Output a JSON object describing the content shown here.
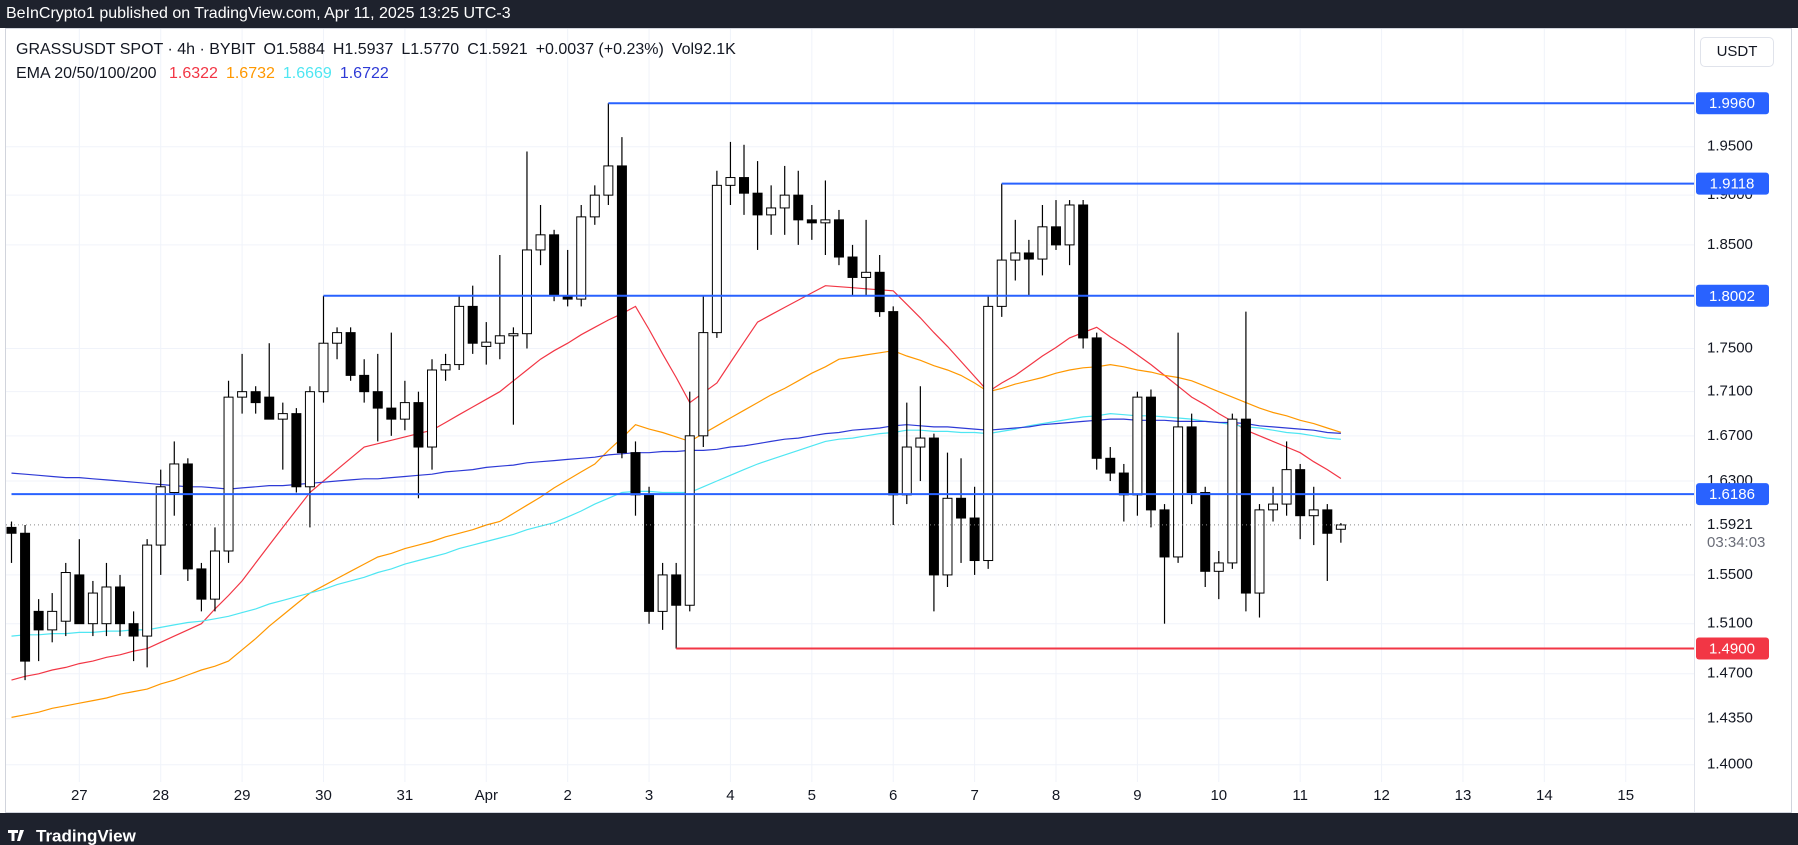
{
  "top_bar": "BeInCrypto1 published on TradingView.com, Apr 11, 2025 13:25 UTC-3",
  "footer": "TradingView",
  "chart_data": {
    "type": "candlestick",
    "symbol": "GRASSUSDT SPOT · 4h · BYBIT",
    "ohlc_header": [
      "O1.5884",
      "H1.5937",
      "L1.5770",
      "C1.5921",
      "+0.0037 (+0.23%)",
      "Vol92.1K"
    ],
    "currency": "USDT",
    "ema_title": "EMA 20/50/100/200",
    "up_color": "#ffffff",
    "down_color": "#000000",
    "open": [
      1.59,
      1.585,
      1.52,
      1.505,
      1.512,
      1.55,
      1.51,
      1.51,
      1.54,
      1.51,
      1.5,
      1.575,
      1.62,
      1.645,
      1.555,
      1.53,
      1.57,
      1.705,
      1.71,
      1.705,
      1.685,
      1.69,
      1.625,
      1.71,
      1.755,
      1.765,
      1.725,
      1.71,
      1.695,
      1.685,
      1.7,
      1.66,
      1.73,
      1.735,
      1.79,
      1.752,
      1.755,
      1.762,
      1.764,
      1.845,
      1.86,
      1.8,
      1.797,
      1.878,
      1.9,
      1.93,
      1.655,
      1.618,
      1.52,
      1.55,
      1.525,
      1.67,
      1.765,
      1.91,
      1.918,
      1.902,
      1.88,
      1.887,
      1.9,
      1.875,
      1.872,
      1.875,
      1.838,
      1.818,
      1.823,
      1.785,
      1.618,
      1.66,
      1.668,
      1.55,
      1.615,
      1.598,
      1.562,
      1.79,
      1.835,
      1.842,
      1.836,
      1.868,
      1.85,
      1.89,
      1.76,
      1.65,
      1.637,
      1.618,
      1.705,
      1.605,
      1.565,
      1.678,
      1.62,
      1.553,
      1.56,
      1.685,
      1.535,
      1.605,
      1.61,
      1.64,
      1.6,
      1.605,
      1.5884
    ],
    "high": [
      1.595,
      1.592,
      1.53,
      1.535,
      1.56,
      1.58,
      1.545,
      1.56,
      1.55,
      1.52,
      1.58,
      1.64,
      1.665,
      1.65,
      1.56,
      1.59,
      1.72,
      1.745,
      1.715,
      1.755,
      1.7,
      1.695,
      1.715,
      1.8002,
      1.77,
      1.77,
      1.74,
      1.745,
      1.765,
      1.72,
      1.71,
      1.74,
      1.745,
      1.8,
      1.81,
      1.775,
      1.84,
      1.77,
      1.945,
      1.89,
      1.865,
      1.845,
      1.89,
      1.91,
      1.996,
      1.96,
      1.665,
      1.625,
      1.56,
      1.56,
      1.71,
      1.8,
      1.925,
      1.955,
      1.952,
      1.935,
      1.91,
      1.93,
      1.925,
      1.89,
      1.915,
      1.885,
      1.85,
      1.875,
      1.84,
      1.79,
      1.7,
      1.715,
      1.672,
      1.655,
      1.65,
      1.625,
      1.8,
      1.9118,
      1.875,
      1.855,
      1.89,
      1.895,
      1.895,
      1.895,
      1.765,
      1.66,
      1.645,
      1.71,
      1.712,
      1.61,
      1.765,
      1.69,
      1.625,
      1.57,
      1.69,
      1.785,
      1.61,
      1.625,
      1.665,
      1.645,
      1.625,
      1.61,
      1.5937
    ],
    "low": [
      1.56,
      1.465,
      1.48,
      1.495,
      1.5,
      1.51,
      1.5,
      1.5,
      1.5,
      1.48,
      1.475,
      1.55,
      1.6,
      1.545,
      1.52,
      1.52,
      1.56,
      1.69,
      1.69,
      1.685,
      1.64,
      1.62,
      1.59,
      1.7,
      1.74,
      1.72,
      1.7,
      1.665,
      1.67,
      1.675,
      1.615,
      1.64,
      1.72,
      1.73,
      1.745,
      1.735,
      1.74,
      1.68,
      1.75,
      1.83,
      1.795,
      1.79,
      1.79,
      1.87,
      1.89,
      1.65,
      1.6,
      1.51,
      1.505,
      1.49,
      1.52,
      1.66,
      1.76,
      1.89,
      1.88,
      1.845,
      1.86,
      1.86,
      1.85,
      1.855,
      1.84,
      1.83,
      1.8,
      1.8,
      1.78,
      1.592,
      1.61,
      1.63,
      1.52,
      1.54,
      1.56,
      1.55,
      1.555,
      1.78,
      1.815,
      1.8,
      1.82,
      1.845,
      1.83,
      1.75,
      1.64,
      1.63,
      1.595,
      1.6,
      1.59,
      1.51,
      1.56,
      1.61,
      1.54,
      1.53,
      1.555,
      1.52,
      1.515,
      1.595,
      1.6,
      1.58,
      1.575,
      1.545,
      1.577
    ],
    "close": [
      1.585,
      1.48,
      1.505,
      1.52,
      1.552,
      1.51,
      1.535,
      1.54,
      1.51,
      1.5,
      1.575,
      1.625,
      1.645,
      1.555,
      1.53,
      1.57,
      1.705,
      1.71,
      1.7,
      1.685,
      1.69,
      1.625,
      1.71,
      1.755,
      1.765,
      1.725,
      1.71,
      1.695,
      1.685,
      1.7,
      1.66,
      1.73,
      1.735,
      1.79,
      1.755,
      1.756,
      1.762,
      1.764,
      1.845,
      1.86,
      1.8,
      1.797,
      1.878,
      1.9,
      1.93,
      1.655,
      1.618,
      1.52,
      1.55,
      1.525,
      1.67,
      1.765,
      1.91,
      1.918,
      1.902,
      1.88,
      1.887,
      1.9,
      1.875,
      1.872,
      1.875,
      1.838,
      1.818,
      1.823,
      1.785,
      1.618,
      1.66,
      1.668,
      1.55,
      1.615,
      1.598,
      1.562,
      1.79,
      1.835,
      1.842,
      1.836,
      1.868,
      1.85,
      1.89,
      1.76,
      1.65,
      1.637,
      1.618,
      1.705,
      1.605,
      1.565,
      1.678,
      1.62,
      1.553,
      1.56,
      1.685,
      1.535,
      1.605,
      1.61,
      1.64,
      1.6,
      1.605,
      1.585,
      1.5921
    ],
    "overlays": [
      {
        "color": "#f23645",
        "legend_value": "1.6322",
        "values": [
          1.465,
          1.468,
          1.47,
          1.473,
          1.475,
          1.478,
          1.48,
          1.483,
          1.485,
          1.488,
          1.49,
          1.495,
          1.5,
          1.505,
          1.51,
          1.522,
          1.533,
          1.545,
          1.56,
          1.575,
          1.59,
          1.605,
          1.62,
          1.63,
          1.64,
          1.65,
          1.66,
          1.663,
          1.666,
          1.669,
          1.672,
          1.675,
          1.682,
          1.689,
          1.696,
          1.703,
          1.71,
          1.72,
          1.73,
          1.74,
          1.748,
          1.755,
          1.763,
          1.77,
          1.777,
          1.783,
          1.79,
          1.768,
          1.745,
          1.723,
          1.7,
          1.709,
          1.718,
          1.737,
          1.756,
          1.775,
          1.782,
          1.789,
          1.796,
          1.803,
          1.81,
          1.809,
          1.808,
          1.807,
          1.806,
          1.805,
          1.792,
          1.779,
          1.765,
          1.752,
          1.738,
          1.724,
          1.71,
          1.718,
          1.725,
          1.734,
          1.743,
          1.751,
          1.76,
          1.765,
          1.77,
          1.761,
          1.753,
          1.744,
          1.735,
          1.725,
          1.715,
          1.705,
          1.698,
          1.69,
          1.683,
          1.675,
          1.67,
          1.665,
          1.66,
          1.655,
          1.647,
          1.64,
          1.6322
        ]
      },
      {
        "color": "#ff9800",
        "legend_value": "1.6732",
        "values": [
          1.436,
          1.438,
          1.44,
          1.443,
          1.445,
          1.447,
          1.449,
          1.451,
          1.454,
          1.456,
          1.458,
          1.462,
          1.465,
          1.469,
          1.473,
          1.476,
          1.48,
          1.489,
          1.498,
          1.508,
          1.517,
          1.526,
          1.535,
          1.541,
          1.547,
          1.553,
          1.559,
          1.565,
          1.568,
          1.572,
          1.575,
          1.578,
          1.582,
          1.585,
          1.588,
          1.592,
          1.595,
          1.602,
          1.609,
          1.616,
          1.624,
          1.631,
          1.638,
          1.645,
          1.657,
          1.668,
          1.68,
          1.676,
          1.673,
          1.669,
          1.665,
          1.672,
          1.679,
          1.686,
          1.693,
          1.7,
          1.707,
          1.713,
          1.72,
          1.727,
          1.733,
          1.74,
          1.742,
          1.744,
          1.746,
          1.748,
          1.743,
          1.739,
          1.734,
          1.73,
          1.725,
          1.718,
          1.71,
          1.713,
          1.717,
          1.72,
          1.723,
          1.727,
          1.73,
          1.732,
          1.733,
          1.735,
          1.733,
          1.73,
          1.728,
          1.725,
          1.723,
          1.72,
          1.715,
          1.71,
          1.705,
          1.7,
          1.695,
          1.691,
          1.688,
          1.684,
          1.681,
          1.677,
          1.6732
        ]
      },
      {
        "color": "#4fe6f2",
        "legend_value": "1.6669",
        "values": [
          1.5,
          1.501,
          1.501,
          1.502,
          1.502,
          1.503,
          1.503,
          1.504,
          1.504,
          1.505,
          1.505,
          1.507,
          1.509,
          1.511,
          1.512,
          1.514,
          1.516,
          1.519,
          1.522,
          1.526,
          1.529,
          1.532,
          1.535,
          1.538,
          1.542,
          1.545,
          1.548,
          1.552,
          1.555,
          1.559,
          1.562,
          1.565,
          1.568,
          1.572,
          1.575,
          1.578,
          1.581,
          1.584,
          1.588,
          1.591,
          1.594,
          1.599,
          1.604,
          1.61,
          1.615,
          1.62,
          1.621,
          1.621,
          1.62,
          1.62,
          1.62,
          1.625,
          1.63,
          1.635,
          1.64,
          1.645,
          1.649,
          1.653,
          1.657,
          1.661,
          1.665,
          1.667,
          1.668,
          1.67,
          1.672,
          1.673,
          1.675,
          1.675,
          1.674,
          1.674,
          1.673,
          1.673,
          1.672,
          1.674,
          1.676,
          1.679,
          1.681,
          1.683,
          1.685,
          1.687,
          1.688,
          1.69,
          1.689,
          1.688,
          1.688,
          1.687,
          1.686,
          1.685,
          1.683,
          1.682,
          1.68,
          1.678,
          1.677,
          1.675,
          1.673,
          1.672,
          1.67,
          1.668,
          1.6669
        ]
      },
      {
        "color": "#2e3ad6",
        "legend_value": "1.6722",
        "values": [
          1.637,
          1.636,
          1.635,
          1.634,
          1.633,
          1.633,
          1.632,
          1.631,
          1.63,
          1.629,
          1.628,
          1.627,
          1.626,
          1.625,
          1.625,
          1.624,
          1.623,
          1.624,
          1.625,
          1.626,
          1.626,
          1.627,
          1.628,
          1.629,
          1.63,
          1.631,
          1.632,
          1.632,
          1.633,
          1.634,
          1.635,
          1.636,
          1.638,
          1.639,
          1.64,
          1.642,
          1.643,
          1.644,
          1.646,
          1.647,
          1.648,
          1.649,
          1.65,
          1.651,
          1.653,
          1.654,
          1.655,
          1.655,
          1.656,
          1.656,
          1.657,
          1.657,
          1.658,
          1.66,
          1.661,
          1.663,
          1.665,
          1.667,
          1.668,
          1.67,
          1.672,
          1.673,
          1.675,
          1.676,
          1.677,
          1.679,
          1.68,
          1.679,
          1.678,
          1.678,
          1.677,
          1.676,
          1.675,
          1.676,
          1.677,
          1.678,
          1.68,
          1.681,
          1.682,
          1.683,
          1.684,
          1.685,
          1.685,
          1.684,
          1.684,
          1.684,
          1.683,
          1.683,
          1.683,
          1.682,
          1.682,
          1.681,
          1.679,
          1.678,
          1.677,
          1.676,
          1.675,
          1.673,
          1.6722
        ]
      }
    ],
    "levels": [
      {
        "value": 1.996,
        "label": "1.9960",
        "color": "#2962ff"
      },
      {
        "value": 1.9118,
        "label": "1.9118",
        "color": "#2962ff"
      },
      {
        "value": 1.8002,
        "label": "1.8002",
        "color": "#2962ff"
      },
      {
        "value": 1.6186,
        "label": "1.6186",
        "color": "#2962ff"
      },
      {
        "value": 1.49,
        "label": "1.4900",
        "color": "#f23645"
      }
    ],
    "last_price": {
      "value": 1.5921,
      "label": "1.5921"
    },
    "countdown": "03:34:03",
    "x_labels": [
      "27",
      "28",
      "29",
      "30",
      "31",
      "Apr",
      "2",
      "3",
      "4",
      "5",
      "6",
      "7",
      "8",
      "9",
      "10",
      "11",
      "12",
      "13",
      "14",
      "15"
    ],
    "ylim": [
      1.365,
      2.077
    ],
    "yticks": [
      {
        "value": 1.4,
        "label": "1.4000"
      },
      {
        "value": 1.435,
        "label": "1.4350"
      },
      {
        "value": 1.47,
        "label": "1.4700"
      },
      {
        "value": 1.51,
        "label": "1.5100"
      },
      {
        "value": 1.55,
        "label": "1.5500"
      },
      {
        "value": 1.63,
        "label": "1.6300"
      },
      {
        "value": 1.67,
        "label": "1.6700"
      },
      {
        "value": 1.71,
        "label": "1.7100"
      },
      {
        "value": 1.75,
        "label": "1.7500"
      },
      {
        "value": 1.85,
        "label": "1.8500"
      },
      {
        "value": 1.9,
        "label": "1.9000"
      },
      {
        "value": 1.95,
        "label": "1.9500"
      }
    ],
    "log_scale": true,
    "grid": true
  }
}
